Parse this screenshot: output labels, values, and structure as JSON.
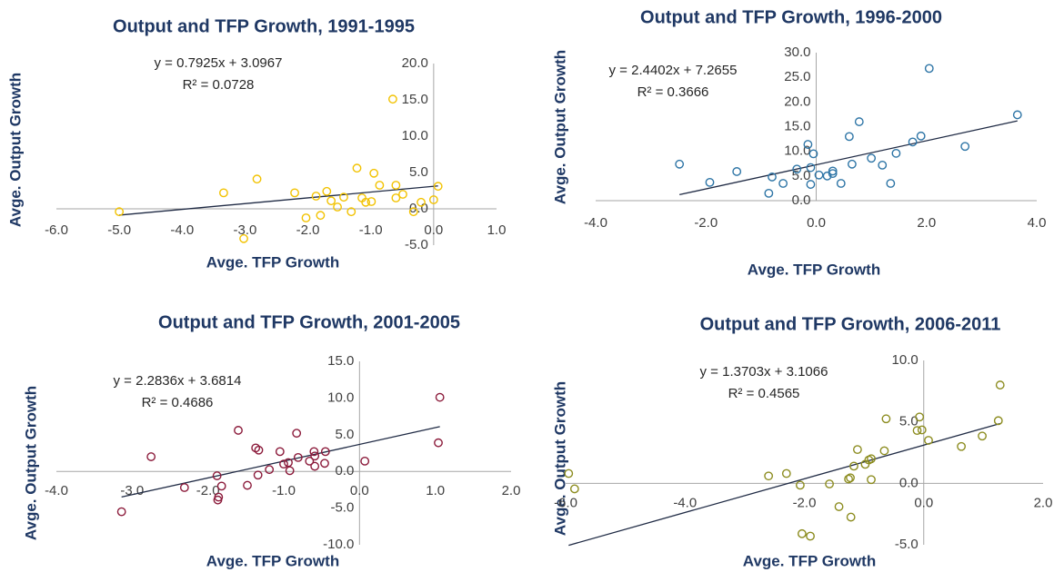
{
  "chart_data": [
    {
      "type": "scatter",
      "title": "Output and TFP Growth, 1991-1995",
      "x_label": "Avge. TFP Growth",
      "y_label": "Avge. Output Growth",
      "color": "#f2c200",
      "x": [
        -5.0,
        -3.02,
        -3.34,
        -2.81,
        -2.21,
        -2.03,
        -1.87,
        -1.8,
        -1.7,
        -1.63,
        -1.53,
        -1.43,
        -1.31,
        -1.22,
        -1.14,
        -1.08,
        -0.99,
        -0.95,
        -0.86,
        -0.65,
        -0.6,
        -0.6,
        -0.49,
        -0.32,
        -0.2,
        0.0,
        0.07
      ],
      "y": [
        -0.4,
        -4.1,
        2.2,
        4.1,
        2.2,
        -1.25,
        1.75,
        -0.9,
        2.4,
        1.1,
        0.25,
        1.6,
        -0.4,
        5.6,
        1.5,
        0.9,
        1.0,
        4.9,
        3.25,
        15.1,
        3.25,
        1.5,
        2.0,
        -0.4,
        0.9,
        1.25,
        3.1
      ],
      "xlim": [
        -6,
        1
      ],
      "ylim": [
        -5,
        20
      ],
      "xticks": [
        {
          "value": -6,
          "label": "-6.0"
        },
        {
          "value": -5,
          "label": "-5.0"
        },
        {
          "value": -4,
          "label": "-4.0"
        },
        {
          "value": -3,
          "label": "-3.0"
        },
        {
          "value": -2,
          "label": "-2.0"
        },
        {
          "value": -1,
          "label": "-1.0"
        },
        {
          "value": 0,
          "label": "0.0"
        },
        {
          "value": 1,
          "label": "1.0"
        }
      ],
      "yticks": [
        {
          "value": -5,
          "label": "-5.0"
        },
        {
          "value": 0,
          "label": "0.0"
        },
        {
          "value": 5,
          "label": "5.0"
        },
        {
          "value": 10,
          "label": "10.0"
        },
        {
          "value": 15,
          "label": "15.0"
        },
        {
          "value": 20,
          "label": "20.0"
        }
      ],
      "trendline": {
        "slope": 0.7925,
        "intercept": 3.0967,
        "equation": "y = 0.7925x + 3.0967",
        "r_squared_label": "R² = 0.0728"
      }
    },
    {
      "type": "scatter",
      "title": "Output and TFP Growth, 1996-2000",
      "x_label": "Avge. TFP Growth",
      "y_label": "Avge. Output Growth",
      "color": "#2e75a6",
      "x": [
        -2.48,
        -1.93,
        -1.44,
        -0.86,
        -0.8,
        -0.6,
        -0.35,
        -0.15,
        -0.1,
        -0.1,
        -0.05,
        0.05,
        0.2,
        0.3,
        0.3,
        0.45,
        0.6,
        0.65,
        0.78,
        1.0,
        1.2,
        1.35,
        1.45,
        1.75,
        1.9,
        2.05,
        2.7,
        3.65
      ],
      "y": [
        7.4,
        3.7,
        5.9,
        1.5,
        4.8,
        3.5,
        6.4,
        11.4,
        3.3,
        6.7,
        9.5,
        5.2,
        5.0,
        6.0,
        5.5,
        3.5,
        13.0,
        7.4,
        16.0,
        8.6,
        7.2,
        3.5,
        9.6,
        11.9,
        13.1,
        26.8,
        11.0,
        17.4
      ],
      "xlim": [
        -4,
        4
      ],
      "ylim": [
        0,
        30
      ],
      "xticks": [
        {
          "value": -4,
          "label": "-4.0"
        },
        {
          "value": -2,
          "label": "-2.0"
        },
        {
          "value": 0,
          "label": "0.0"
        },
        {
          "value": 2,
          "label": "2.0"
        },
        {
          "value": 4,
          "label": "4.0"
        }
      ],
      "yticks": [
        {
          "value": 0,
          "label": "0.0"
        },
        {
          "value": 5,
          "label": "5.0"
        },
        {
          "value": 10,
          "label": "10.0"
        },
        {
          "value": 15,
          "label": "15.0"
        },
        {
          "value": 20,
          "label": "20.0"
        },
        {
          "value": 25,
          "label": "25.0"
        },
        {
          "value": 30,
          "label": "30.0"
        }
      ],
      "trendline": {
        "slope": 2.4402,
        "intercept": 7.2655,
        "equation": "y = 2.4402x + 7.2655",
        "r_squared_label": "R² = 0.3666"
      }
    },
    {
      "type": "scatter",
      "title": "Output and TFP Growth, 2001-2005",
      "x_label": "Avge. TFP Growth",
      "y_label": "Avge. Output Growth",
      "color": "#8b1a3a",
      "x": [
        -3.14,
        -2.75,
        -2.31,
        -1.88,
        -1.87,
        -1.86,
        -1.82,
        -1.6,
        -1.48,
        -1.37,
        -1.33,
        -1.34,
        -1.19,
        -1.05,
        -1.0,
        -0.94,
        -0.92,
        -0.83,
        -0.81,
        -0.66,
        -0.6,
        -0.59,
        -0.59,
        -0.46,
        -0.45,
        0.07,
        1.06,
        1.04
      ],
      "y": [
        -5.5,
        2.0,
        -2.2,
        -0.6,
        -3.9,
        -3.5,
        -2.0,
        5.6,
        -1.9,
        3.2,
        2.9,
        -0.5,
        0.25,
        2.7,
        1.0,
        1.2,
        0.1,
        5.2,
        1.9,
        1.4,
        2.7,
        2.1,
        0.7,
        1.1,
        2.7,
        1.4,
        10.1,
        3.9
      ],
      "xlim": [
        -4,
        2
      ],
      "ylim": [
        -10,
        15
      ],
      "xticks": [
        {
          "value": -4,
          "label": "-4.0"
        },
        {
          "value": -3,
          "label": "-3.0"
        },
        {
          "value": -2,
          "label": "-2.0"
        },
        {
          "value": -1,
          "label": "-1.0"
        },
        {
          "value": 0,
          "label": "0.0"
        },
        {
          "value": 1,
          "label": "1.0"
        },
        {
          "value": 2,
          "label": "2.0"
        }
      ],
      "yticks": [
        {
          "value": -10,
          "label": "-10.0"
        },
        {
          "value": -5,
          "label": "-5.0"
        },
        {
          "value": 0,
          "label": "0.0"
        },
        {
          "value": 5,
          "label": "5.0"
        },
        {
          "value": 10,
          "label": "10.0"
        },
        {
          "value": 15,
          "label": "15.0"
        }
      ],
      "trendline": {
        "slope": 2.2836,
        "intercept": 3.6814,
        "equation": "y = 2.2836x + 3.6814",
        "r_squared_label": "R² = 0.4686"
      }
    },
    {
      "type": "scatter",
      "title": "Output and TFP Growth, 2006-2011",
      "x_label": "Avge. TFP Growth",
      "y_label": "Avge. Output Growth",
      "color": "#8c8c1f",
      "x": [
        -5.95,
        -5.85,
        -2.6,
        -2.3,
        -2.07,
        -2.04,
        -1.9,
        -1.58,
        -1.42,
        -1.26,
        -1.23,
        -1.22,
        -1.17,
        -1.11,
        -0.98,
        -0.92,
        -0.88,
        -0.88,
        -0.66,
        -0.63,
        -0.11,
        -0.07,
        -0.03,
        0.08,
        0.63,
        0.98,
        1.25,
        1.28
      ],
      "y": [
        0.8,
        -0.45,
        0.6,
        0.8,
        -0.15,
        -4.1,
        -4.3,
        -0.05,
        -1.9,
        0.35,
        0.45,
        -2.75,
        1.4,
        2.75,
        1.55,
        1.9,
        2.0,
        0.3,
        2.65,
        5.25,
        4.3,
        5.4,
        4.35,
        3.5,
        3.0,
        3.85,
        5.1,
        8.0
      ],
      "xlim": [
        -6,
        2
      ],
      "ylim": [
        -5,
        10
      ],
      "xticks": [
        {
          "value": -6,
          "label": "-6.0"
        },
        {
          "value": -4,
          "label": "-4.0"
        },
        {
          "value": -2,
          "label": "-2.0"
        },
        {
          "value": 0,
          "label": "0.0"
        },
        {
          "value": 2,
          "label": "2.0"
        }
      ],
      "yticks": [
        {
          "value": -5,
          "label": "-5.0"
        },
        {
          "value": 0,
          "label": "0.0"
        },
        {
          "value": 5,
          "label": "5.0"
        },
        {
          "value": 10,
          "label": "10.0"
        }
      ],
      "trendline": {
        "slope": 1.3703,
        "intercept": 3.1066,
        "equation": "y = 1.3703x + 3.1066",
        "r_squared_label": "R² = 0.4565"
      }
    }
  ]
}
